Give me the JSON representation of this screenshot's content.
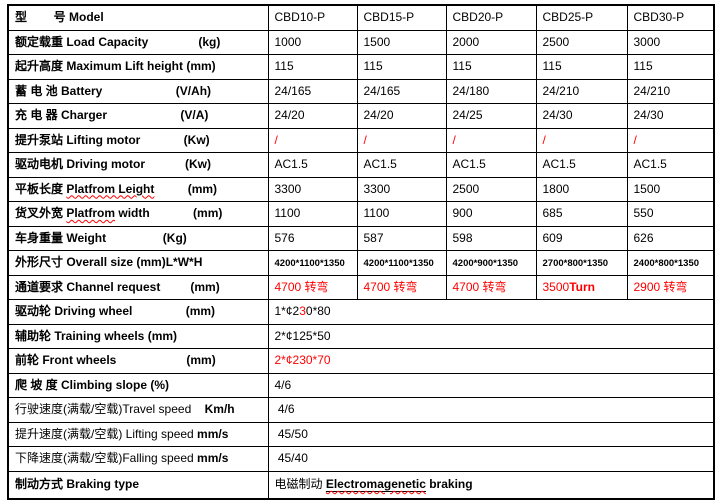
{
  "colors": {
    "accent_red": "#ff0000",
    "text": "#000000",
    "border": "#000000",
    "background": "#ffffff"
  },
  "table": {
    "rows": [
      {
        "label": [
          {
            "t": "型        号 Model",
            "b": 1
          }
        ],
        "cells": [
          "CBD10-P",
          "CBD15-P",
          "CBD20-P",
          "CBD25-P",
          "CBD30-P"
        ]
      },
      {
        "label": [
          {
            "t": "额定载重 Load Capacity               (kg)",
            "b": 1
          }
        ],
        "cells": [
          "1000",
          "1500",
          "2000",
          "2500",
          "3000"
        ]
      },
      {
        "label": [
          {
            "t": "起升高度 Maximum Lift height (mm)",
            "b": 1
          }
        ],
        "cells": [
          "115",
          "115",
          "115",
          "115",
          "115"
        ]
      },
      {
        "label": [
          {
            "t": "蓄 电 池 Battery                      (V/Ah)",
            "b": 1
          }
        ],
        "cells": [
          "24/165",
          "24/165",
          "24/180",
          "24/210",
          "24/210"
        ]
      },
      {
        "label": [
          {
            "t": "充 电 器 Charger                      (V/A)",
            "b": 1
          }
        ],
        "cells": [
          "24/20",
          "24/20",
          "24/25",
          "24/30",
          "24/30"
        ]
      },
      {
        "label": [
          {
            "t": "提升泵站 Lifting motor             (Kw)",
            "b": 1
          }
        ],
        "cells": [
          [
            {
              "t": "/",
              "r": 1
            }
          ],
          [
            {
              "t": "/",
              "r": 1
            }
          ],
          [
            {
              "t": "/",
              "r": 1
            }
          ],
          [
            {
              "t": "/",
              "r": 1
            }
          ],
          [
            {
              "t": "/",
              "r": 1
            }
          ]
        ]
      },
      {
        "label": [
          {
            "t": "驱动电机 Driving motor            (Kw)",
            "b": 1
          }
        ],
        "cells": [
          "AC1.5",
          "AC1.5",
          "AC1.5",
          "AC1.5",
          "AC1.5"
        ]
      },
      {
        "label": [
          {
            "t": "平板长度 ",
            "b": 1
          },
          {
            "t": "Platfrom Leight",
            "b": 1,
            "sq": 1
          },
          {
            "t": "          (mm)",
            "b": 1
          }
        ],
        "cells": [
          "3300",
          "3300",
          "2500",
          "1800",
          "1500"
        ]
      },
      {
        "label": [
          {
            "t": "货叉外宽 ",
            "b": 1
          },
          {
            "t": "Platfrom",
            "b": 1,
            "sq": 1
          },
          {
            "t": " width",
            "b": 1
          },
          {
            "t": "             (mm)",
            "b": 1
          }
        ],
        "cells": [
          "1100",
          "1100",
          "900",
          "685",
          "550"
        ]
      },
      {
        "label": [
          {
            "t": "车身重量 Weight                 (Kg)",
            "b": 1
          }
        ],
        "cells": [
          "576",
          "587",
          "598",
          "609",
          "626"
        ]
      },
      {
        "label": [
          {
            "t": "外形尺寸 Overall size (mm)L*W*H",
            "b": 1
          }
        ],
        "cells": [
          [
            {
              "t": "4200*1100*1350",
              "sm": 1
            }
          ],
          [
            {
              "t": "4200*1100*1350",
              "sm": 1
            }
          ],
          [
            {
              "t": "4200*900*1350",
              "sm": 1
            }
          ],
          [
            {
              "t": "2700*800*1350",
              "sm": 1
            }
          ],
          [
            {
              "t": "2400*800*1350",
              "sm": 1
            }
          ]
        ]
      },
      {
        "label": [
          {
            "t": "通道要求 Channel request         (mm)",
            "b": 1
          }
        ],
        "cells": [
          [
            {
              "t": "4700 转弯",
              "r": 1
            }
          ],
          [
            {
              "t": "4700 转弯",
              "r": 1
            }
          ],
          [
            {
              "t": "4700 转弯",
              "r": 1
            }
          ],
          [
            {
              "t": "3500",
              "r": 1
            },
            {
              "t": "Turn",
              "r": 1,
              "b": 1
            }
          ],
          [
            {
              "t": "2900 转弯",
              "r": 1
            }
          ]
        ]
      },
      {
        "label": [
          {
            "t": "驱动轮 Driving wheel                (mm)",
            "b": 1
          }
        ],
        "span": [
          {
            "t": "1*¢2"
          },
          {
            "t": "3",
            "r": 1
          },
          {
            "t": "0*80"
          }
        ]
      },
      {
        "label": [
          {
            "t": "辅助轮 Training wheels (mm)",
            "b": 1
          }
        ],
        "span": [
          {
            "t": "2*¢125*50"
          }
        ]
      },
      {
        "label": [
          {
            "t": "前轮 Front wheels                     (mm)",
            "b": 1
          }
        ],
        "span": [
          {
            "t": "2*¢230*70",
            "r": 1
          }
        ]
      },
      {
        "label": [
          {
            "t": "爬 坡 度 Climbing slope (%)",
            "b": 1
          }
        ],
        "span": [
          {
            "t": "4/6"
          }
        ]
      },
      {
        "label": [
          {
            "t": "行驶速度(满载/空载)Travel speed"
          },
          {
            "t": "    "
          },
          {
            "t": "Km/h",
            "b": 1
          }
        ],
        "span": [
          {
            "t": " 4/6"
          }
        ]
      },
      {
        "label": [
          {
            "t": "提升速度(满载/空载) Lifting speed "
          },
          {
            "t": "mm/s",
            "b": 1
          }
        ],
        "span": [
          {
            "t": " 45/50"
          }
        ]
      },
      {
        "label": [
          {
            "t": "下降速度(满载/空载)Falling speed "
          },
          {
            "t": "mm/s",
            "b": 1
          }
        ],
        "span": [
          {
            "t": " 45/40"
          }
        ]
      },
      {
        "label": [
          {
            "t": "制动方式 Braking type",
            "b": 1
          }
        ],
        "span": [
          {
            "t": "电磁制动 "
          },
          {
            "t": "Electromagenetic",
            "us": 1
          },
          {
            "t": " braking",
            "b": 1
          }
        ]
      }
    ]
  }
}
